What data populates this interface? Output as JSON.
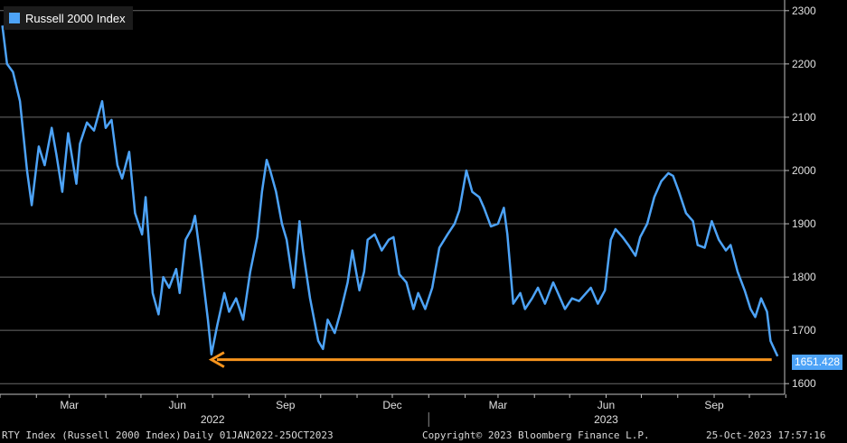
{
  "chart_data": {
    "type": "line",
    "series": [
      {
        "name": "Russell 2000 Index",
        "color": "#4da3f7",
        "points": [
          [
            "2022-01-03",
            2272
          ],
          [
            "2022-01-07",
            2200
          ],
          [
            "2022-01-12",
            2185
          ],
          [
            "2022-01-18",
            2130
          ],
          [
            "2022-01-24",
            2000
          ],
          [
            "2022-01-28",
            1935
          ],
          [
            "2022-02-03",
            2045
          ],
          [
            "2022-02-08",
            2010
          ],
          [
            "2022-02-14",
            2080
          ],
          [
            "2022-02-18",
            2030
          ],
          [
            "2022-02-23",
            1960
          ],
          [
            "2022-02-28",
            2070
          ],
          [
            "2022-03-07",
            1975
          ],
          [
            "2022-03-10",
            2050
          ],
          [
            "2022-03-16",
            2090
          ],
          [
            "2022-03-22",
            2075
          ],
          [
            "2022-03-29",
            2130
          ],
          [
            "2022-04-01",
            2080
          ],
          [
            "2022-04-06",
            2095
          ],
          [
            "2022-04-11",
            2010
          ],
          [
            "2022-04-15",
            1985
          ],
          [
            "2022-04-21",
            2035
          ],
          [
            "2022-04-26",
            1920
          ],
          [
            "2022-05-02",
            1880
          ],
          [
            "2022-05-05",
            1950
          ],
          [
            "2022-05-11",
            1770
          ],
          [
            "2022-05-16",
            1730
          ],
          [
            "2022-05-20",
            1800
          ],
          [
            "2022-05-25",
            1780
          ],
          [
            "2022-05-31",
            1815
          ],
          [
            "2022-06-03",
            1770
          ],
          [
            "2022-06-08",
            1870
          ],
          [
            "2022-06-13",
            1890
          ],
          [
            "2022-06-16",
            1915
          ],
          [
            "2022-06-21",
            1830
          ],
          [
            "2022-06-27",
            1720
          ],
          [
            "2022-06-30",
            1655
          ],
          [
            "2022-07-05",
            1710
          ],
          [
            "2022-07-11",
            1770
          ],
          [
            "2022-07-15",
            1735
          ],
          [
            "2022-07-21",
            1760
          ],
          [
            "2022-07-27",
            1720
          ],
          [
            "2022-08-02",
            1810
          ],
          [
            "2022-08-08",
            1875
          ],
          [
            "2022-08-12",
            1960
          ],
          [
            "2022-08-16",
            2020
          ],
          [
            "2022-08-19",
            2000
          ],
          [
            "2022-08-24",
            1960
          ],
          [
            "2022-08-29",
            1900
          ],
          [
            "2022-09-02",
            1870
          ],
          [
            "2022-09-08",
            1780
          ],
          [
            "2022-09-13",
            1905
          ],
          [
            "2022-09-16",
            1850
          ],
          [
            "2022-09-22",
            1760
          ],
          [
            "2022-09-29",
            1680
          ],
          [
            "2022-10-03",
            1665
          ],
          [
            "2022-10-07",
            1720
          ],
          [
            "2022-10-13",
            1695
          ],
          [
            "2022-10-18",
            1735
          ],
          [
            "2022-10-24",
            1790
          ],
          [
            "2022-10-28",
            1850
          ],
          [
            "2022-11-03",
            1775
          ],
          [
            "2022-11-07",
            1810
          ],
          [
            "2022-11-10",
            1870
          ],
          [
            "2022-11-16",
            1880
          ],
          [
            "2022-11-22",
            1850
          ],
          [
            "2022-11-28",
            1870
          ],
          [
            "2022-12-02",
            1875
          ],
          [
            "2022-12-07",
            1805
          ],
          [
            "2022-12-13",
            1790
          ],
          [
            "2022-12-19",
            1740
          ],
          [
            "2022-12-23",
            1770
          ],
          [
            "2022-12-29",
            1740
          ],
          [
            "2023-01-04",
            1780
          ],
          [
            "2023-01-10",
            1855
          ],
          [
            "2023-01-17",
            1880
          ],
          [
            "2023-01-23",
            1900
          ],
          [
            "2023-01-27",
            1925
          ],
          [
            "2023-02-02",
            2000
          ],
          [
            "2023-02-07",
            1960
          ],
          [
            "2023-02-13",
            1950
          ],
          [
            "2023-02-17",
            1930
          ],
          [
            "2023-02-23",
            1895
          ],
          [
            "2023-03-01",
            1900
          ],
          [
            "2023-03-06",
            1930
          ],
          [
            "2023-03-09",
            1880
          ],
          [
            "2023-03-14",
            1750
          ],
          [
            "2023-03-20",
            1770
          ],
          [
            "2023-03-24",
            1740
          ],
          [
            "2023-03-30",
            1760
          ],
          [
            "2023-04-04",
            1780
          ],
          [
            "2023-04-10",
            1750
          ],
          [
            "2023-04-17",
            1790
          ],
          [
            "2023-04-21",
            1770
          ],
          [
            "2023-04-27",
            1740
          ],
          [
            "2023-05-03",
            1760
          ],
          [
            "2023-05-09",
            1755
          ],
          [
            "2023-05-15",
            1770
          ],
          [
            "2023-05-19",
            1780
          ],
          [
            "2023-05-25",
            1750
          ],
          [
            "2023-05-31",
            1775
          ],
          [
            "2023-06-05",
            1870
          ],
          [
            "2023-06-09",
            1890
          ],
          [
            "2023-06-15",
            1875
          ],
          [
            "2023-06-20",
            1860
          ],
          [
            "2023-06-26",
            1840
          ],
          [
            "2023-06-30",
            1875
          ],
          [
            "2023-07-06",
            1900
          ],
          [
            "2023-07-12",
            1950
          ],
          [
            "2023-07-18",
            1980
          ],
          [
            "2023-07-24",
            1995
          ],
          [
            "2023-07-28",
            1990
          ],
          [
            "2023-08-02",
            1960
          ],
          [
            "2023-08-08",
            1920
          ],
          [
            "2023-08-14",
            1905
          ],
          [
            "2023-08-18",
            1860
          ],
          [
            "2023-08-24",
            1855
          ],
          [
            "2023-08-30",
            1905
          ],
          [
            "2023-09-05",
            1870
          ],
          [
            "2023-09-11",
            1850
          ],
          [
            "2023-09-15",
            1860
          ],
          [
            "2023-09-21",
            1810
          ],
          [
            "2023-09-27",
            1775
          ],
          [
            "2023-10-02",
            1740
          ],
          [
            "2023-10-06",
            1725
          ],
          [
            "2023-10-11",
            1760
          ],
          [
            "2023-10-16",
            1735
          ],
          [
            "2023-10-19",
            1680
          ],
          [
            "2023-10-25",
            1651.428
          ]
        ]
      }
    ],
    "y_axis": {
      "side": "right",
      "ylim": [
        1580,
        2320
      ],
      "ticks": [
        "1600",
        "1700",
        "1800",
        "1900",
        "2000",
        "2100",
        "2200",
        "2300"
      ]
    },
    "x_axis": {
      "xlim": [
        "2022-01-01",
        "2023-10-31"
      ],
      "month_ticks": [
        {
          "date": "2022-03-01",
          "label": "Mar"
        },
        {
          "date": "2022-06-01",
          "label": "Jun"
        },
        {
          "date": "2022-09-01",
          "label": "Sep"
        },
        {
          "date": "2022-12-01",
          "label": "Dec"
        },
        {
          "date": "2023-03-01",
          "label": "Mar"
        },
        {
          "date": "2023-06-01",
          "label": "Jun"
        },
        {
          "date": "2023-09-01",
          "label": "Sep"
        }
      ],
      "year_labels": [
        {
          "date": "2022-07-01",
          "label": "2022"
        },
        {
          "date": "2023-06-01",
          "label": "2023"
        }
      ],
      "year_separator": "2023-01-01"
    },
    "grid": true,
    "legend": {
      "label": "Russell 2000 Index",
      "placement": "top-left"
    },
    "last_value_label": "1651.428",
    "support_arrow": {
      "color": "#f7941d",
      "level": 1645,
      "from": "2023-10-20",
      "to": "2022-06-30"
    }
  },
  "footer": {
    "ticker": "RTY Index (Russell 2000 Index)",
    "range": "Daily 01JAN2022-25OCT2023",
    "copyright": "Copyright© 2023 Bloomberg Finance L.P.",
    "timestamp": "25-Oct-2023  17:57:16"
  }
}
